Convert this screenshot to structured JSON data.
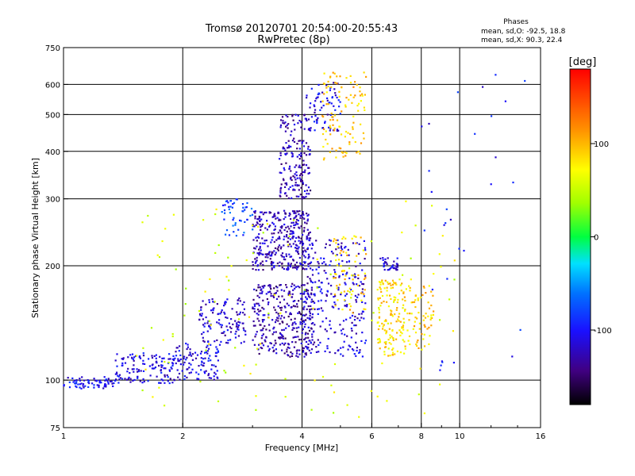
{
  "chart_data": {
    "type": "scatter",
    "title": "Tromsø 20120701 20:54:00-20:55:43",
    "subtitle": "RwPretec (8p)",
    "xlabel": "Frequency [MHz]",
    "ylabel": "Stationary phase Virtual Height [km]",
    "x_scale": "log",
    "y_scale": "log",
    "xlim": [
      1,
      16
    ],
    "ylim": [
      75,
      750
    ],
    "x_ticks": [
      "1",
      "2",
      "4",
      "6",
      "8",
      "10",
      "16"
    ],
    "y_ticks": [
      "75",
      "100",
      "200",
      "300",
      "400",
      "500",
      "600",
      "750"
    ],
    "x_tick_values": [
      1,
      2,
      4,
      6,
      8,
      10,
      16
    ],
    "y_tick_values": [
      75,
      100,
      200,
      300,
      400,
      500,
      600,
      750
    ],
    "x_gridlines": [
      2,
      4,
      6,
      8,
      10
    ],
    "y_gridlines": [
      100,
      200,
      300,
      400,
      500,
      600
    ],
    "grid": true,
    "stats": {
      "heading": "Phases",
      "line_o": "mean, sd,O: -92.5, 18.8",
      "line_x": "mean, sd,X:  90.3, 22.4"
    },
    "colorbar": {
      "label": "[deg]",
      "ticks": [
        "100",
        "0",
        "-100"
      ],
      "tick_values": [
        100,
        0,
        -100
      ],
      "range": [
        -180,
        180
      ]
    },
    "clusters": [
      {
        "f": [
          1.0,
          1.35
        ],
        "h": [
          95,
          102
        ],
        "phase": -105,
        "n": 70
      },
      {
        "f": [
          1.35,
          1.9
        ],
        "h": [
          98,
          118
        ],
        "phase": -110,
        "n": 130
      },
      {
        "f": [
          1.9,
          2.5
        ],
        "h": [
          100,
          125
        ],
        "phase": -110,
        "n": 110
      },
      {
        "f": [
          2.2,
          2.9
        ],
        "h": [
          125,
          165
        ],
        "phase": -115,
        "n": 120
      },
      {
        "f": [
          2.5,
          3.0
        ],
        "h": [
          240,
          300
        ],
        "phase": -80,
        "n": 50
      },
      {
        "f": [
          3.0,
          4.2
        ],
        "h": [
          195,
          280
        ],
        "phase": -125,
        "n": 340
      },
      {
        "f": [
          3.0,
          4.3
        ],
        "h": [
          115,
          180
        ],
        "phase": -130,
        "n": 320
      },
      {
        "f": [
          3.5,
          4.2
        ],
        "h": [
          300,
          500
        ],
        "phase": -125,
        "n": 180
      },
      {
        "f": [
          4.1,
          5.0
        ],
        "h": [
          450,
          620
        ],
        "phase": -110,
        "n": 70
      },
      {
        "f": [
          4.5,
          5.8
        ],
        "h": [
          380,
          650
        ],
        "phase": 95,
        "n": 110
      },
      {
        "f": [
          4.0,
          5.8
        ],
        "h": [
          115,
          240
        ],
        "phase": -115,
        "n": 280
      },
      {
        "f": [
          4.8,
          5.8
        ],
        "h": [
          150,
          240
        ],
        "phase": 90,
        "n": 70
      },
      {
        "f": [
          6.2,
          7.3
        ],
        "h": [
          115,
          185
        ],
        "phase": 85,
        "n": 150
      },
      {
        "f": [
          6.3,
          7.0
        ],
        "h": [
          195,
          210
        ],
        "phase": -110,
        "n": 40
      },
      {
        "f": [
          7.3,
          8.6
        ],
        "h": [
          120,
          180
        ],
        "phase": 90,
        "n": 70
      },
      {
        "f": [
          1.5,
          10.0
        ],
        "h": [
          80,
          300
        ],
        "phase": 60,
        "n": 120
      },
      {
        "f": [
          8.0,
          15.0
        ],
        "h": [
          100,
          650
        ],
        "phase": -100,
        "n": 30
      }
    ]
  }
}
